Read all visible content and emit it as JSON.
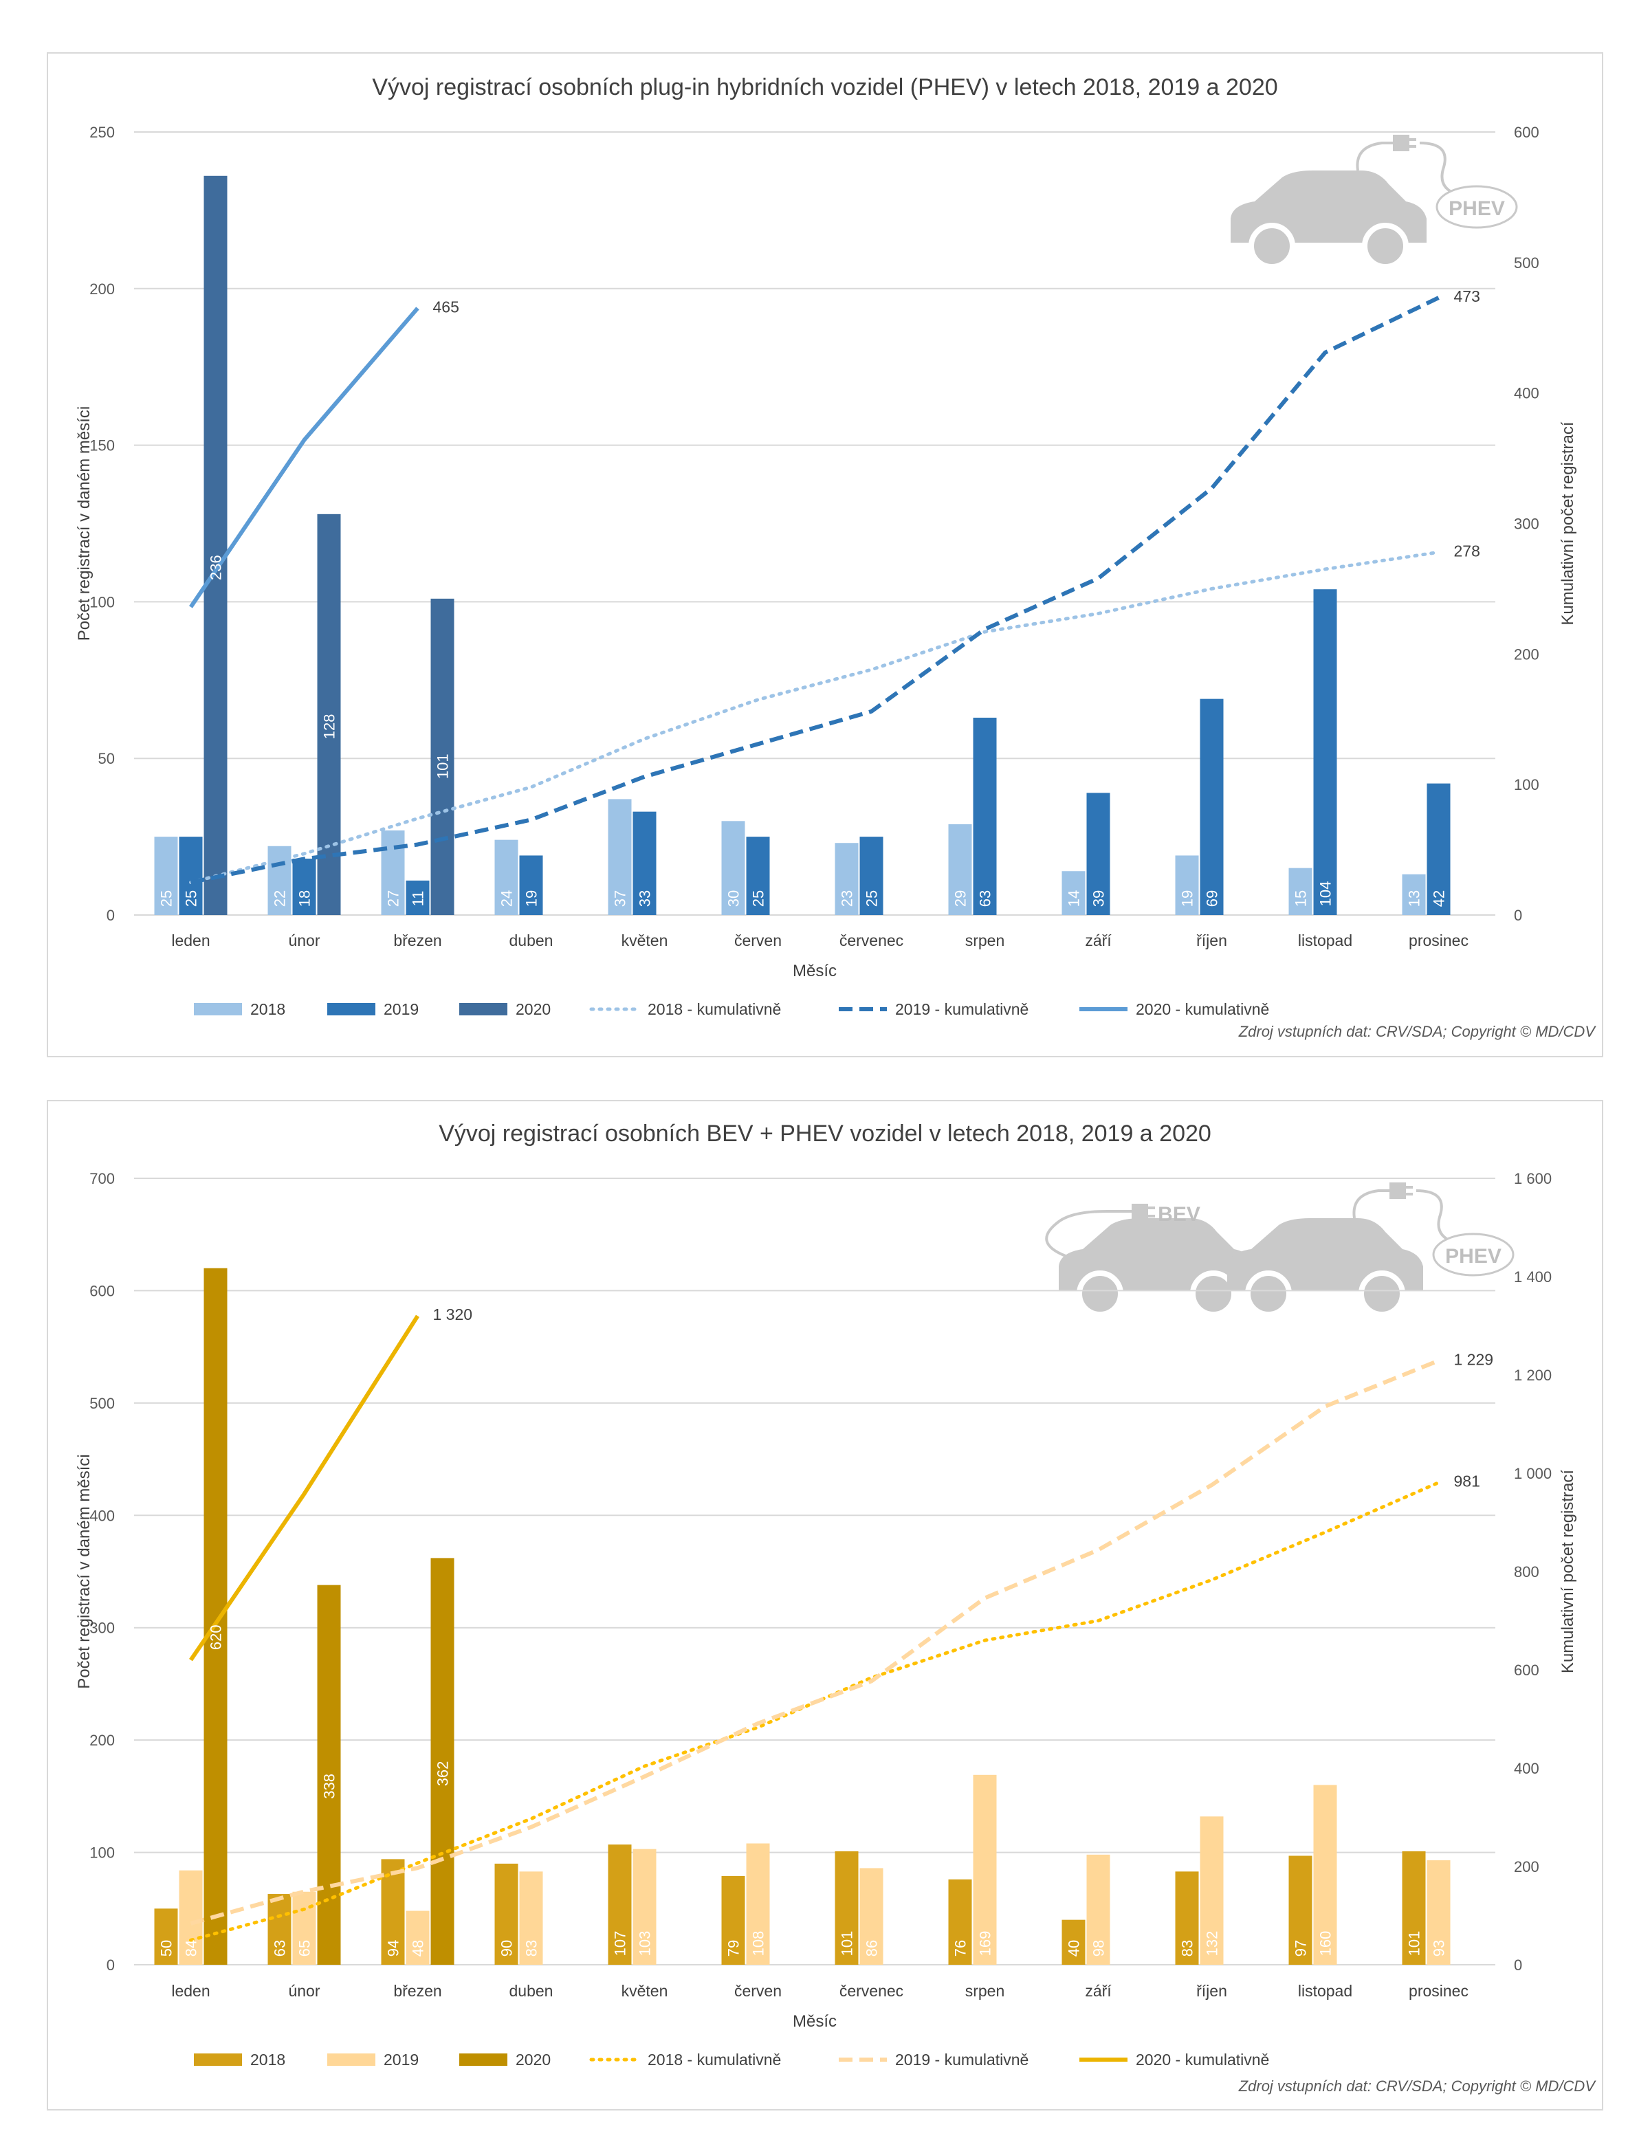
{
  "charts": [
    {
      "title": "Vývoj registrací osobních plug-in hybridních vozidel (PHEV) v letech 2018, 2019 a 2020",
      "xlabel": "Měsíc",
      "ylabel": "Počet registrací v daném měsíci",
      "y2label": "Kumulativní počet registrací",
      "source": "Zdroj vstupních dat: CRV/SDA; Copyright © MD/CDV",
      "badges": [
        "PHEV"
      ],
      "colors": {
        "bar2018": "#9dc3e6",
        "bar2019": "#2e75b6",
        "bar2020": "#3f6c9c",
        "line2018": "#9dc3e6",
        "line2019": "#2e75b6",
        "line2020": "#5b9bd5"
      }
    },
    {
      "title": "Vývoj registrací osobních BEV + PHEV vozidel v letech 2018, 2019 a 2020",
      "xlabel": "Měsíc",
      "ylabel": "Počet registrací v daném měsíci",
      "y2label": "Kumulativní počet registrací",
      "source": "Zdroj vstupních dat: CRV/SDA; Copyright © MD/CDV",
      "badges": [
        "BEV",
        "PHEV"
      ],
      "colors": {
        "bar2018": "#d4a017",
        "bar2019": "#ffd797",
        "bar2020": "#bf8f00",
        "line2018": "#ffc000",
        "line2019": "#ffd8a0",
        "line2020": "#ecb400"
      }
    }
  ],
  "chart_data": [
    {
      "type": "bar",
      "title": "Vývoj registrací osobních plug-in hybridních vozidel (PHEV) v letech 2018, 2019 a 2020",
      "xlabel": "Měsíc",
      "ylabel": "Počet registrací v daném měsíci",
      "y2label": "Kumulativní počet registrací",
      "categories": [
        "leden",
        "únor",
        "březen",
        "duben",
        "květen",
        "červen",
        "červenec",
        "srpen",
        "září",
        "říjen",
        "listopad",
        "prosinec"
      ],
      "ylim": [
        0,
        250
      ],
      "yticks": [
        0,
        50,
        100,
        150,
        200,
        250
      ],
      "ytick_labels": [
        "0",
        "50",
        "100",
        "150",
        "200",
        "250"
      ],
      "y2lim": [
        0,
        600
      ],
      "y2ticks": [
        0,
        100,
        200,
        300,
        400,
        500,
        600
      ],
      "y2tick_labels": [
        "0",
        "100",
        "200",
        "300",
        "400",
        "500",
        "600"
      ],
      "grid": true,
      "legend_position": "bottom",
      "series": [
        {
          "name": "2018",
          "kind": "bar",
          "values": [
            25,
            22,
            27,
            24,
            37,
            30,
            23,
            29,
            14,
            19,
            15,
            13
          ],
          "labels": [
            "25",
            "22",
            "27",
            "24",
            "37",
            "30",
            "23",
            "29",
            "14",
            "19",
            "15",
            "13"
          ]
        },
        {
          "name": "2019",
          "kind": "bar",
          "values": [
            25,
            18,
            11,
            19,
            33,
            25,
            25,
            63,
            39,
            69,
            104,
            42
          ],
          "labels": [
            "25",
            "18",
            "11",
            "19",
            "33",
            "25",
            "25",
            "63",
            "39",
            "69",
            "104",
            "42"
          ]
        },
        {
          "name": "2020",
          "kind": "bar",
          "values": [
            236,
            128,
            101,
            null,
            null,
            null,
            null,
            null,
            null,
            null,
            null,
            null
          ],
          "labels": [
            "236",
            "128",
            "101",
            "",
            "",
            "",
            "",
            "",
            "",
            "",
            "",
            ""
          ]
        },
        {
          "name": "2018 - kumulativně",
          "kind": "line",
          "dash": "dot",
          "axis": "right",
          "values": [
            25,
            47,
            74,
            98,
            135,
            165,
            188,
            217,
            231,
            250,
            265,
            278
          ],
          "end_label": "278"
        },
        {
          "name": "2019 - kumulativně",
          "kind": "line",
          "dash": "dash",
          "axis": "right",
          "values": [
            25,
            43,
            54,
            73,
            106,
            131,
            156,
            219,
            258,
            327,
            431,
            473
          ],
          "end_label": "473"
        },
        {
          "name": "2020 - kumulativně",
          "kind": "line",
          "dash": "solid",
          "axis": "right",
          "values": [
            236,
            364,
            465,
            null,
            null,
            null,
            null,
            null,
            null,
            null,
            null,
            null
          ],
          "end_label": "465"
        }
      ]
    },
    {
      "type": "bar",
      "title": "Vývoj registrací osobních BEV + PHEV vozidel v letech 2018, 2019 a 2020",
      "xlabel": "Měsíc",
      "ylabel": "Počet registrací v daném měsíci",
      "y2label": "Kumulativní počet registrací",
      "categories": [
        "leden",
        "únor",
        "březen",
        "duben",
        "květen",
        "červen",
        "červenec",
        "srpen",
        "září",
        "říjen",
        "listopad",
        "prosinec"
      ],
      "ylim": [
        0,
        700
      ],
      "yticks": [
        0,
        100,
        200,
        300,
        400,
        500,
        600,
        700
      ],
      "ytick_labels": [
        "0",
        "100",
        "200",
        "300",
        "400",
        "500",
        "600",
        "700"
      ],
      "y2lim": [
        0,
        1600
      ],
      "y2ticks": [
        0,
        200,
        400,
        600,
        800,
        1000,
        1200,
        1400,
        1600
      ],
      "y2tick_labels": [
        "0",
        "200",
        "400",
        "600",
        "800",
        "1 000",
        "1 200",
        "1 400",
        "1 600"
      ],
      "grid": true,
      "legend_position": "bottom",
      "series": [
        {
          "name": "2018",
          "kind": "bar",
          "values": [
            50,
            63,
            94,
            90,
            107,
            79,
            101,
            76,
            40,
            83,
            97,
            101
          ],
          "labels": [
            "50",
            "63",
            "94",
            "90",
            "107",
            "79",
            "101",
            "76",
            "40",
            "83",
            "97",
            "101"
          ]
        },
        {
          "name": "2019",
          "kind": "bar",
          "values": [
            84,
            65,
            48,
            83,
            103,
            108,
            86,
            169,
            98,
            132,
            160,
            93
          ],
          "labels": [
            "84",
            "65",
            "48",
            "83",
            "103",
            "108",
            "86",
            "169",
            "98",
            "132",
            "160",
            "93"
          ]
        },
        {
          "name": "2020",
          "kind": "bar",
          "values": [
            620,
            338,
            362,
            null,
            null,
            null,
            null,
            null,
            null,
            null,
            null,
            null
          ],
          "labels": [
            "620",
            "338",
            "362",
            "",
            "",
            "",
            "",
            "",
            "",
            "",
            "",
            ""
          ]
        },
        {
          "name": "2018 - kumulativně",
          "kind": "line",
          "dash": "dot",
          "axis": "right",
          "values": [
            50,
            113,
            207,
            297,
            404,
            483,
            584,
            660,
            700,
            783,
            880,
            981
          ],
          "end_label": "981"
        },
        {
          "name": "2019 - kumulativně",
          "kind": "line",
          "dash": "dash",
          "axis": "right",
          "values": [
            84,
            149,
            197,
            280,
            383,
            491,
            577,
            746,
            844,
            976,
            1136,
            1229
          ],
          "end_label": "1 229"
        },
        {
          "name": "2020 - kumulativně",
          "kind": "line",
          "dash": "solid",
          "axis": "right",
          "values": [
            620,
            958,
            1320,
            null,
            null,
            null,
            null,
            null,
            null,
            null,
            null,
            null
          ],
          "end_label": "1 320"
        }
      ]
    }
  ]
}
